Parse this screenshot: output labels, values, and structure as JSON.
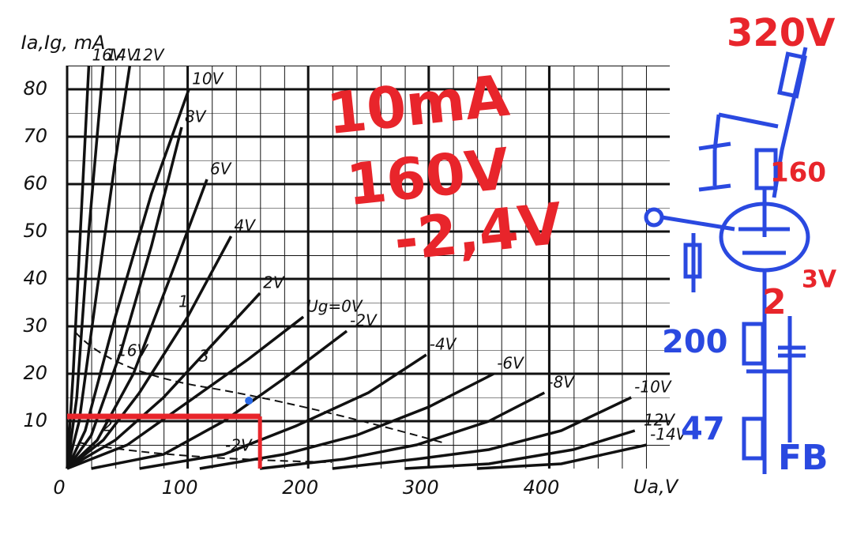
{
  "chart_data": {
    "type": "line",
    "y_label": "Ia,Ig, mA",
    "x_label": "Ua,V",
    "xlim": [
      0,
      500
    ],
    "ylim": [
      0,
      85
    ],
    "xticks": [
      0,
      100,
      200,
      300,
      400
    ],
    "yticks": [
      10,
      20,
      30,
      40,
      50,
      60,
      70,
      80
    ],
    "grid": true,
    "color": "#111111",
    "series": [
      {
        "name": "16V",
        "x": [
          0,
          5,
          12,
          18
        ],
        "values": [
          0,
          20,
          55,
          85
        ]
      },
      {
        "name": "14V",
        "x": [
          0,
          8,
          18,
          30
        ],
        "values": [
          0,
          15,
          50,
          85
        ]
      },
      {
        "name": "12V",
        "x": [
          0,
          10,
          25,
          40,
          52
        ],
        "values": [
          0,
          10,
          38,
          65,
          85
        ]
      },
      {
        "name": "10V",
        "x": [
          0,
          15,
          40,
          70,
          101
        ],
        "values": [
          0,
          8,
          32,
          58,
          80
        ]
      },
      {
        "name": "8V",
        "x": [
          0,
          20,
          45,
          70,
          95
        ],
        "values": [
          0,
          7,
          25,
          47,
          72
        ]
      },
      {
        "name": "6V",
        "x": [
          0,
          25,
          55,
          85,
          116
        ],
        "values": [
          0,
          6,
          20,
          40,
          61
        ]
      },
      {
        "name": "4V",
        "x": [
          0,
          30,
          60,
          100,
          136
        ],
        "values": [
          0,
          6,
          16,
          32,
          49
        ]
      },
      {
        "name": "2V",
        "x": [
          0,
          40,
          80,
          120,
          160
        ],
        "values": [
          0,
          6,
          15,
          26,
          37
        ]
      },
      {
        "name": "Ug=0V",
        "x": [
          0,
          50,
          100,
          150,
          196
        ],
        "values": [
          0,
          5,
          14,
          23,
          32
        ]
      },
      {
        "name": "-2V",
        "x": [
          20,
          80,
          130,
          180,
          232
        ],
        "values": [
          0,
          3,
          10,
          19,
          29
        ]
      },
      {
        "name": "-4V",
        "x": [
          60,
          130,
          190,
          250,
          298
        ],
        "values": [
          0,
          3,
          9,
          16,
          24
        ]
      },
      {
        "name": "-6V",
        "x": [
          110,
          180,
          240,
          300,
          354
        ],
        "values": [
          0,
          3,
          7,
          13,
          20
        ]
      },
      {
        "name": "-8V",
        "x": [
          160,
          230,
          290,
          350,
          396
        ],
        "values": [
          0,
          2,
          5,
          10,
          16
        ]
      },
      {
        "name": "-10V",
        "x": [
          220,
          290,
          350,
          410,
          468
        ],
        "values": [
          0,
          2,
          4,
          8,
          15
        ]
      },
      {
        "name": "-12V",
        "x": [
          280,
          350,
          420,
          471
        ],
        "values": [
          0,
          1,
          4,
          8
        ]
      },
      {
        "name": "-14V",
        "x": [
          340,
          410,
          481
        ],
        "values": [
          0,
          1,
          5
        ]
      }
    ],
    "grid_current_labels": [
      "16V",
      "1",
      "3",
      "2",
      "-2V"
    ],
    "operating_point": {
      "x": 160,
      "y": 11,
      "color": "#e8252b"
    },
    "annotations": [
      "10mA",
      "160V",
      "-2,4V"
    ]
  },
  "schematic": {
    "labels": [
      "320V",
      "160",
      "2",
      "3V",
      "200",
      "47",
      "FB"
    ]
  }
}
